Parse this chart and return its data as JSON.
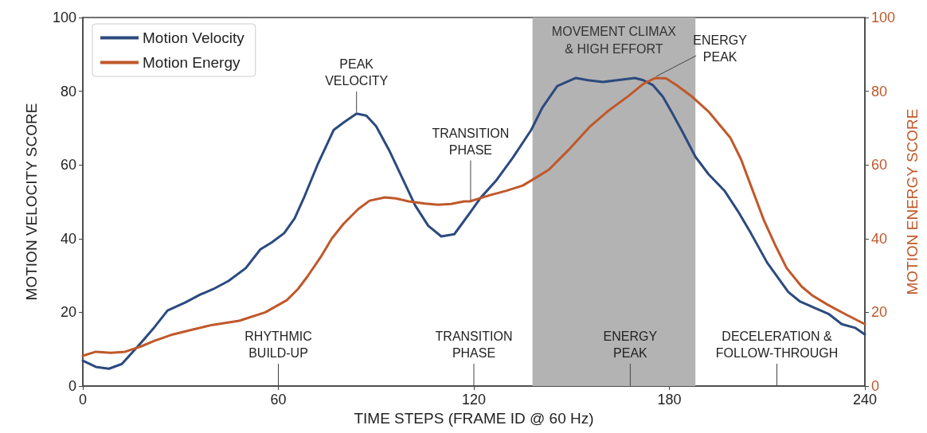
{
  "chart_data": {
    "type": "line",
    "xlabel": "TIME STEPS (FRAME ID @ 60 Hz)",
    "ylabel": "MOTION VELOCITY SCORE",
    "y2label": "MOTION ENERGY SCORE",
    "xlim": [
      0,
      240
    ],
    "xticks": [
      0,
      60,
      120,
      180,
      240
    ],
    "ylim": [
      0,
      100
    ],
    "yticks": [
      0,
      20,
      40,
      60,
      80,
      100
    ],
    "y2lim": [
      0,
      100
    ],
    "y2ticks": [
      0,
      20,
      40,
      60,
      80,
      100
    ],
    "grid": false,
    "legend": "top left",
    "marker": "none",
    "line_style": "solid",
    "series": [
      {
        "name": "Motion Velocity",
        "color": "#2b4a7e",
        "x": [
          0,
          4,
          8,
          12,
          18,
          22,
          26,
          31.5,
          36,
          40,
          44.7,
          50,
          54.5,
          58,
          61.8,
          65,
          68,
          72,
          77,
          80,
          84,
          87,
          90,
          94,
          98,
          102,
          106,
          110,
          114,
          118.8,
          122,
          126.8,
          132,
          137.6,
          141,
          145.6,
          151.3,
          155,
          159.6,
          164,
          169.4,
          172,
          175,
          178,
          180.6,
          184,
          188,
          192,
          197,
          201,
          205,
          210,
          216.5,
          220,
          224.6,
          229,
          232.9,
          237,
          240
        ],
        "values": [
          6.9,
          5.2,
          4.7,
          6,
          11.9,
          16,
          20.5,
          22.7,
          24.8,
          26.3,
          28.5,
          32,
          37.1,
          39,
          41.5,
          45.5,
          51.4,
          60,
          69.5,
          71.5,
          73.9,
          73.4,
          70.5,
          64,
          56.5,
          49,
          43.5,
          40.6,
          41.2,
          47,
          51,
          55.7,
          62,
          69.5,
          75.5,
          81.4,
          83.6,
          83,
          82.5,
          83,
          83.6,
          83,
          81.6,
          78.5,
          74.5,
          69,
          62.2,
          57.5,
          52.9,
          47.5,
          41.5,
          33.5,
          25.5,
          23,
          21.2,
          19.5,
          16.8,
          15.8,
          14
        ]
      },
      {
        "name": "Motion Energy",
        "color": "#c0582a",
        "axis": "y2",
        "x": [
          0,
          4,
          8.6,
          13,
          18,
          22,
          27.6,
          34,
          39.8,
          48,
          56,
          62.6,
          66,
          69,
          73,
          76.4,
          80,
          84.5,
          88,
          92.7,
          96,
          100,
          105,
          109,
          113,
          117,
          118.8,
          125,
          130,
          135,
          139,
          143,
          149,
          155.4,
          161,
          167.6,
          172,
          175.7,
          179,
          182.3,
          187,
          192,
          198.7,
          202,
          205,
          209,
          212.4,
          216,
          220.6,
          224,
          228.7,
          234,
          240
        ],
        "values": [
          8.2,
          9.3,
          9,
          9.3,
          10.8,
          12.3,
          14,
          15.4,
          16.6,
          17.7,
          20,
          23.3,
          26.3,
          29.8,
          35,
          40,
          44,
          48,
          50.3,
          51.2,
          50.9,
          50.1,
          49.5,
          49.2,
          49.4,
          50.1,
          50.1,
          51.8,
          53,
          54.4,
          56.5,
          58.7,
          64,
          70.2,
          74.5,
          78.8,
          82,
          83.6,
          83.5,
          81.6,
          78.5,
          74.5,
          67.4,
          61.5,
          54.4,
          45,
          38.4,
          32,
          27,
          24.5,
          22,
          19.5,
          16.8
        ]
      }
    ],
    "bands": [
      {
        "axis": "x",
        "from": 138,
        "to": 188,
        "label": "MOVEMENT CLIMAX\n& HIGH EFFORT",
        "color": "#b3b3b3"
      }
    ],
    "annotations": [
      {
        "text": "PEAK\nVELOCITY",
        "x": 84,
        "y": 73.9
      },
      {
        "text": "TRANSITION\nPHASE",
        "x": 119,
        "y": 50
      },
      {
        "text": "ENERGY\nPEAK",
        "x": 176,
        "y": 83.6
      }
    ],
    "ref_lines": [
      {
        "axis": "x",
        "value": 60,
        "label": "RHYTHMIC\nBUILD-UP"
      },
      {
        "axis": "x",
        "value": 120,
        "label": "TRANSITION\nPHASE"
      },
      {
        "axis": "x",
        "value": 168,
        "label": "ENERGY\nPEAK"
      },
      {
        "axis": "x",
        "value": 213,
        "label": "DECELERATION &\nFOLLOW-THROUGH"
      }
    ]
  }
}
